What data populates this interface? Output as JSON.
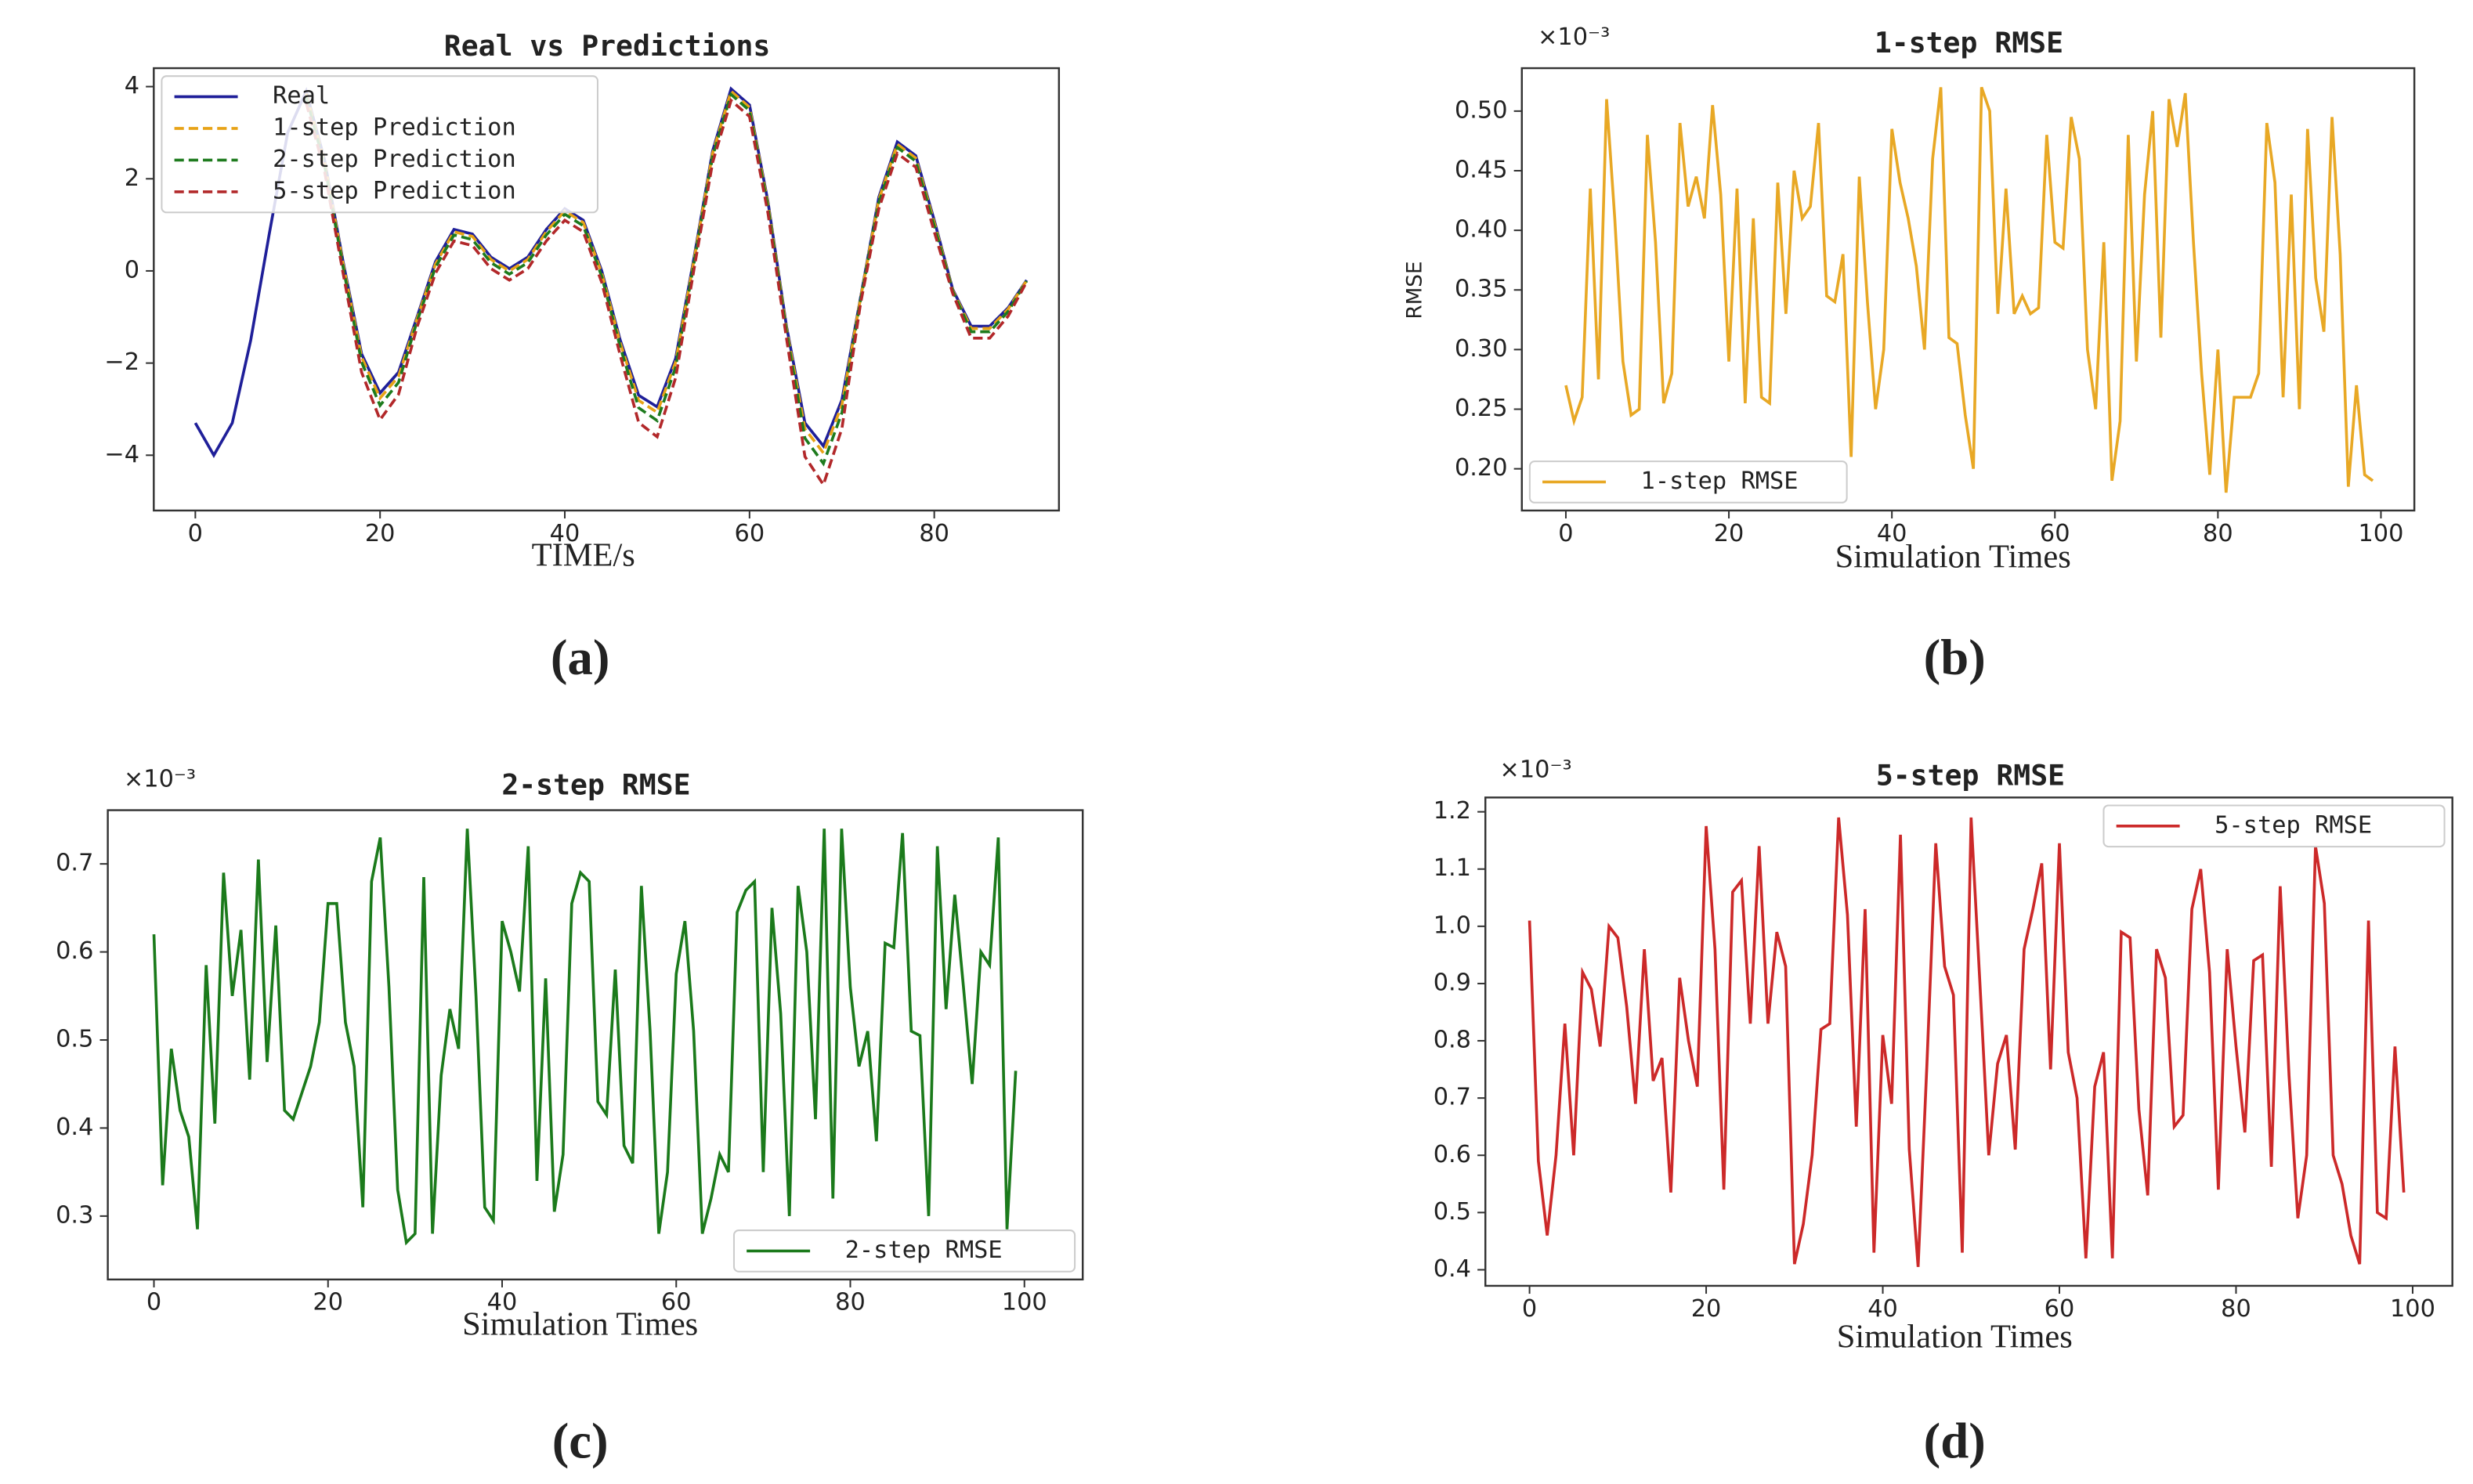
{
  "chart_data": [
    {
      "type": "line",
      "title": "Real vs Predictions",
      "x_label": "TIME/s",
      "panel_label": "(a)",
      "legend": "upper left",
      "x": [
        0,
        2,
        4,
        6,
        8,
        10,
        12,
        14,
        16,
        18,
        20,
        22,
        24,
        26,
        28,
        30,
        32,
        34,
        36,
        38,
        40,
        42,
        44,
        46,
        48,
        50,
        52,
        54,
        56,
        58,
        60,
        62,
        64,
        66,
        68,
        70,
        72,
        74,
        76,
        78,
        80,
        82,
        84,
        86,
        88,
        90
      ],
      "series": [
        {
          "name": "Real",
          "color": "#1f1f99",
          "linestyle": "solid",
          "values": [
            -3.3,
            -4.0,
            -3.3,
            -1.5,
            0.8,
            3.0,
            3.9,
            2.4,
            0.2,
            -1.8,
            -2.65,
            -2.2,
            -1.0,
            0.2,
            0.9,
            0.8,
            0.3,
            0.05,
            0.3,
            0.9,
            1.35,
            1.1,
            0.0,
            -1.5,
            -2.7,
            -2.95,
            -1.9,
            0.3,
            2.6,
            3.95,
            3.6,
            1.5,
            -1.2,
            -3.3,
            -3.8,
            -2.8,
            -0.6,
            1.6,
            2.8,
            2.5,
            1.1,
            -0.4,
            -1.2,
            -1.2,
            -0.8,
            -0.2
          ]
        },
        {
          "name": "1-step Prediction",
          "color": "#e8a317",
          "linestyle": "dashed",
          "values": [
            null,
            null,
            null,
            null,
            null,
            null,
            3.85,
            2.35,
            0.15,
            -1.87,
            -2.76,
            -2.29,
            -1.04,
            0.15,
            0.85,
            0.75,
            0.25,
            0.0,
            0.25,
            0.85,
            1.3,
            1.05,
            -0.05,
            -1.56,
            -2.81,
            -3.07,
            -1.98,
            0.25,
            2.55,
            3.9,
            3.55,
            1.45,
            -1.25,
            -3.43,
            -3.95,
            -2.91,
            -0.62,
            1.55,
            2.75,
            2.45,
            1.05,
            -0.42,
            -1.25,
            -1.25,
            -0.83,
            -0.21
          ]
        },
        {
          "name": "2-step Prediction",
          "color": "#1e7b1e",
          "linestyle": "dashed",
          "values": [
            null,
            null,
            null,
            null,
            null,
            null,
            3.78,
            2.28,
            0.08,
            -1.98,
            -2.92,
            -2.42,
            -1.1,
            0.08,
            0.78,
            0.68,
            0.18,
            -0.07,
            0.18,
            0.78,
            1.23,
            0.98,
            -0.12,
            -1.65,
            -2.97,
            -3.25,
            -2.09,
            0.18,
            2.48,
            3.83,
            3.48,
            1.38,
            -1.32,
            -3.63,
            -4.18,
            -3.08,
            -0.66,
            1.48,
            2.68,
            2.38,
            0.98,
            -0.44,
            -1.32,
            -1.32,
            -0.88,
            -0.22
          ]
        },
        {
          "name": "5-step Prediction",
          "color": "#b2282a",
          "linestyle": "dashed",
          "values": [
            null,
            null,
            null,
            null,
            null,
            null,
            3.65,
            2.15,
            -0.05,
            -2.2,
            -3.23,
            -2.68,
            -1.22,
            -0.05,
            0.65,
            0.55,
            0.05,
            -0.2,
            0.05,
            0.65,
            1.1,
            0.85,
            -0.25,
            -1.83,
            -3.29,
            -3.6,
            -2.32,
            0.05,
            2.35,
            3.7,
            3.35,
            1.25,
            -1.46,
            -4.03,
            -4.64,
            -3.42,
            -0.73,
            1.35,
            2.55,
            2.25,
            0.85,
            -0.49,
            -1.46,
            -1.46,
            -0.98,
            -0.24
          ]
        }
      ],
      "xlim": [
        -4.5,
        93.5
      ],
      "ylim": [
        -5.2,
        4.4
      ],
      "xticks": [
        0,
        20,
        40,
        60,
        80
      ],
      "yticks": [
        {
          "value": -4,
          "label": "−4"
        },
        {
          "value": -2,
          "label": "−2"
        },
        0,
        2,
        4
      ]
    },
    {
      "type": "line",
      "title": "1-step RMSE",
      "y_label": "RMSE",
      "x_label": "Simulation Times",
      "offset_label": "×10⁻³",
      "panel_label": "(b)",
      "legend": "lower left",
      "x": [
        0,
        1,
        2,
        3,
        4,
        5,
        6,
        7,
        8,
        9,
        10,
        11,
        12,
        13,
        14,
        15,
        16,
        17,
        18,
        19,
        20,
        21,
        22,
        23,
        24,
        25,
        26,
        27,
        28,
        29,
        30,
        31,
        32,
        33,
        34,
        35,
        36,
        37,
        38,
        39,
        40,
        41,
        42,
        43,
        44,
        45,
        46,
        47,
        48,
        49,
        50,
        51,
        52,
        53,
        54,
        55,
        56,
        57,
        58,
        59,
        60,
        61,
        62,
        63,
        64,
        65,
        66,
        67,
        68,
        69,
        70,
        71,
        72,
        73,
        74,
        75,
        76,
        77,
        78,
        79,
        80,
        81,
        82,
        83,
        84,
        85,
        86,
        87,
        88,
        89,
        90,
        91,
        92,
        93,
        94,
        95,
        96,
        97,
        98,
        99
      ],
      "series": [
        {
          "name": "1-step RMSE",
          "color": "#e8a825",
          "linestyle": "solid",
          "values": [
            0.27,
            0.24,
            0.26,
            0.435,
            0.275,
            0.51,
            0.41,
            0.29,
            0.245,
            0.25,
            0.48,
            0.39,
            0.255,
            0.28,
            0.49,
            0.42,
            0.445,
            0.41,
            0.505,
            0.43,
            0.29,
            0.435,
            0.255,
            0.41,
            0.26,
            0.255,
            0.44,
            0.33,
            0.45,
            0.41,
            0.42,
            0.49,
            0.345,
            0.34,
            0.38,
            0.21,
            0.445,
            0.34,
            0.25,
            0.3,
            0.485,
            0.44,
            0.41,
            0.37,
            0.3,
            0.46,
            0.52,
            0.31,
            0.305,
            0.245,
            0.2,
            0.52,
            0.5,
            0.33,
            0.435,
            0.33,
            0.345,
            0.33,
            0.335,
            0.48,
            0.39,
            0.385,
            0.495,
            0.46,
            0.3,
            0.25,
            0.39,
            0.19,
            0.24,
            0.48,
            0.29,
            0.43,
            0.5,
            0.31,
            0.51,
            0.47,
            0.515,
            0.39,
            0.28,
            0.195,
            0.3,
            0.18,
            0.26,
            0.26,
            0.26,
            0.28,
            0.49,
            0.44,
            0.26,
            0.43,
            0.25,
            0.485,
            0.36,
            0.315,
            0.495,
            0.38,
            0.185,
            0.27,
            0.195,
            0.19
          ]
        }
      ],
      "xlim": [
        -5.4,
        104.1
      ],
      "ylim": [
        0.165,
        0.536
      ],
      "xticks": [
        0,
        20,
        40,
        60,
        80,
        100
      ],
      "yticks": [
        {
          "value": 0.2,
          "label": "0.20"
        },
        {
          "value": 0.25,
          "label": "0.25"
        },
        {
          "value": 0.3,
          "label": "0.30"
        },
        {
          "value": 0.35,
          "label": "0.35"
        },
        {
          "value": 0.4,
          "label": "0.40"
        },
        {
          "value": 0.45,
          "label": "0.45"
        },
        {
          "value": 0.5,
          "label": "0.50"
        }
      ]
    },
    {
      "type": "line",
      "title": "2-step RMSE",
      "x_label": "Simulation Times",
      "offset_label": "×10⁻³",
      "panel_label": "(c)",
      "legend": "lower right",
      "x": [
        0,
        1,
        2,
        3,
        4,
        5,
        6,
        7,
        8,
        9,
        10,
        11,
        12,
        13,
        14,
        15,
        16,
        17,
        18,
        19,
        20,
        21,
        22,
        23,
        24,
        25,
        26,
        27,
        28,
        29,
        30,
        31,
        32,
        33,
        34,
        35,
        36,
        37,
        38,
        39,
        40,
        41,
        42,
        43,
        44,
        45,
        46,
        47,
        48,
        49,
        50,
        51,
        52,
        53,
        54,
        55,
        56,
        57,
        58,
        59,
        60,
        61,
        62,
        63,
        64,
        65,
        66,
        67,
        68,
        69,
        70,
        71,
        72,
        73,
        74,
        75,
        76,
        77,
        78,
        79,
        80,
        81,
        82,
        83,
        84,
        85,
        86,
        87,
        88,
        89,
        90,
        91,
        92,
        93,
        94,
        95,
        96,
        97,
        98,
        99
      ],
      "series": [
        {
          "name": "2-step RMSE",
          "color": "#1b7a1b",
          "linestyle": "solid",
          "values": [
            0.62,
            0.335,
            0.49,
            0.42,
            0.39,
            0.285,
            0.585,
            0.405,
            0.69,
            0.55,
            0.625,
            0.455,
            0.705,
            0.475,
            0.63,
            0.42,
            0.41,
            0.44,
            0.47,
            0.52,
            0.655,
            0.655,
            0.52,
            0.47,
            0.31,
            0.68,
            0.73,
            0.56,
            0.33,
            0.27,
            0.28,
            0.685,
            0.28,
            0.46,
            0.535,
            0.49,
            0.74,
            0.55,
            0.31,
            0.295,
            0.635,
            0.6,
            0.555,
            0.72,
            0.34,
            0.57,
            0.305,
            0.37,
            0.655,
            0.69,
            0.68,
            0.43,
            0.415,
            0.58,
            0.38,
            0.36,
            0.675,
            0.51,
            0.28,
            0.35,
            0.575,
            0.635,
            0.51,
            0.28,
            0.32,
            0.37,
            0.35,
            0.645,
            0.67,
            0.68,
            0.35,
            0.65,
            0.53,
            0.3,
            0.675,
            0.6,
            0.41,
            0.74,
            0.32,
            0.74,
            0.56,
            0.47,
            0.51,
            0.385,
            0.61,
            0.605,
            0.735,
            0.51,
            0.505,
            0.3,
            0.72,
            0.535,
            0.665,
            0.56,
            0.45,
            0.6,
            0.585,
            0.73,
            0.285,
            0.465
          ]
        }
      ],
      "xlim": [
        -5.3,
        106.7
      ],
      "ylim": [
        0.228,
        0.761
      ],
      "xticks": [
        0,
        20,
        40,
        60,
        80,
        100
      ],
      "yticks": [
        0.3,
        0.4,
        0.5,
        0.6,
        0.7
      ]
    },
    {
      "type": "line",
      "title": "5-step RMSE",
      "x_label": "Simulation Times",
      "offset_label": "×10⁻³",
      "panel_label": "(d)",
      "legend": "upper right",
      "x": [
        0,
        1,
        2,
        3,
        4,
        5,
        6,
        7,
        8,
        9,
        10,
        11,
        12,
        13,
        14,
        15,
        16,
        17,
        18,
        19,
        20,
        21,
        22,
        23,
        24,
        25,
        26,
        27,
        28,
        29,
        30,
        31,
        32,
        33,
        34,
        35,
        36,
        37,
        38,
        39,
        40,
        41,
        42,
        43,
        44,
        45,
        46,
        47,
        48,
        49,
        50,
        51,
        52,
        53,
        54,
        55,
        56,
        57,
        58,
        59,
        60,
        61,
        62,
        63,
        64,
        65,
        66,
        67,
        68,
        69,
        70,
        71,
        72,
        73,
        74,
        75,
        76,
        77,
        78,
        79,
        80,
        81,
        82,
        83,
        84,
        85,
        86,
        87,
        88,
        89,
        90,
        91,
        92,
        93,
        94,
        95,
        96,
        97,
        98,
        99
      ],
      "series": [
        {
          "name": "5-step RMSE",
          "color": "#cc2929",
          "linestyle": "solid",
          "values": [
            1.01,
            0.59,
            0.46,
            0.6,
            0.83,
            0.6,
            0.92,
            0.89,
            0.79,
            1.0,
            0.98,
            0.86,
            0.69,
            0.96,
            0.73,
            0.77,
            0.535,
            0.91,
            0.8,
            0.72,
            1.175,
            0.96,
            0.54,
            1.06,
            1.08,
            0.83,
            1.14,
            0.83,
            0.99,
            0.93,
            0.41,
            0.48,
            0.6,
            0.82,
            0.83,
            1.19,
            1.02,
            0.65,
            1.03,
            0.43,
            0.81,
            0.69,
            1.16,
            0.61,
            0.405,
            0.76,
            1.145,
            0.93,
            0.88,
            0.43,
            1.19,
            0.9,
            0.6,
            0.76,
            0.81,
            0.61,
            0.96,
            1.03,
            1.11,
            0.75,
            1.145,
            0.78,
            0.7,
            0.42,
            0.72,
            0.78,
            0.42,
            0.99,
            0.98,
            0.68,
            0.53,
            0.96,
            0.91,
            0.65,
            0.67,
            1.03,
            1.1,
            0.92,
            0.54,
            0.96,
            0.79,
            0.64,
            0.94,
            0.95,
            0.58,
            1.07,
            0.74,
            0.49,
            0.6,
            1.14,
            1.04,
            0.6,
            0.55,
            0.46,
            0.41,
            1.01,
            0.5,
            0.49,
            0.79,
            0.535
          ]
        }
      ],
      "xlim": [
        -5.0,
        104.5
      ],
      "ylim": [
        0.372,
        1.225
      ],
      "xticks": [
        0,
        20,
        40,
        60,
        80,
        100
      ],
      "yticks": [
        0.4,
        0.5,
        0.6,
        0.7,
        0.8,
        0.9,
        {
          "value": 1.0,
          "label": "1.0"
        },
        1.1,
        1.2
      ]
    }
  ]
}
